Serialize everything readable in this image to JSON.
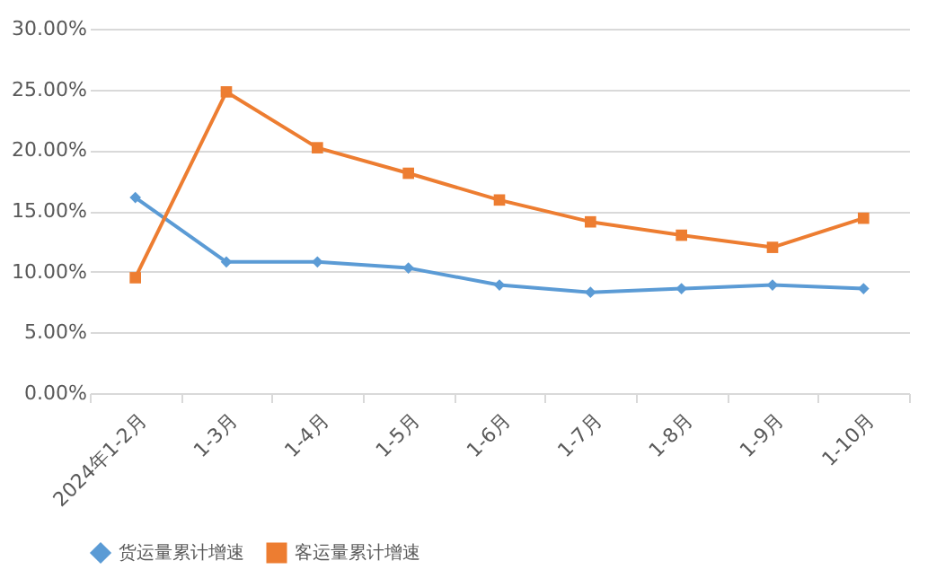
{
  "chart_data": {
    "type": "line",
    "categories": [
      "2024年1-2月",
      "1-3月",
      "1-4月",
      "1-5月",
      "1-6月",
      "1-7月",
      "1-8月",
      "1-9月",
      "1-10月"
    ],
    "series": [
      {
        "name": "货运量累计增速",
        "color": "#5b9bd5",
        "marker": "diamond",
        "values": [
          16.1,
          10.8,
          10.8,
          10.3,
          8.9,
          8.3,
          8.6,
          8.9,
          8.6
        ]
      },
      {
        "name": "客运量累计增速",
        "color": "#ed7d31",
        "marker": "square",
        "values": [
          9.5,
          24.8,
          20.2,
          18.1,
          15.9,
          14.1,
          13.0,
          12.0,
          14.4
        ]
      }
    ],
    "ylim": [
      0,
      30
    ],
    "yticks": [
      {
        "value": 0,
        "label": "0.00%"
      },
      {
        "value": 5,
        "label": "5.00%"
      },
      {
        "value": 10,
        "label": "10.00%"
      },
      {
        "value": 15,
        "label": "15.00%"
      },
      {
        "value": 20,
        "label": "20.00%"
      },
      {
        "value": 25,
        "label": "25.00%"
      },
      {
        "value": 30,
        "label": "30.00%"
      }
    ],
    "grid": "y",
    "legend": "bottom",
    "line_style": "solid"
  }
}
